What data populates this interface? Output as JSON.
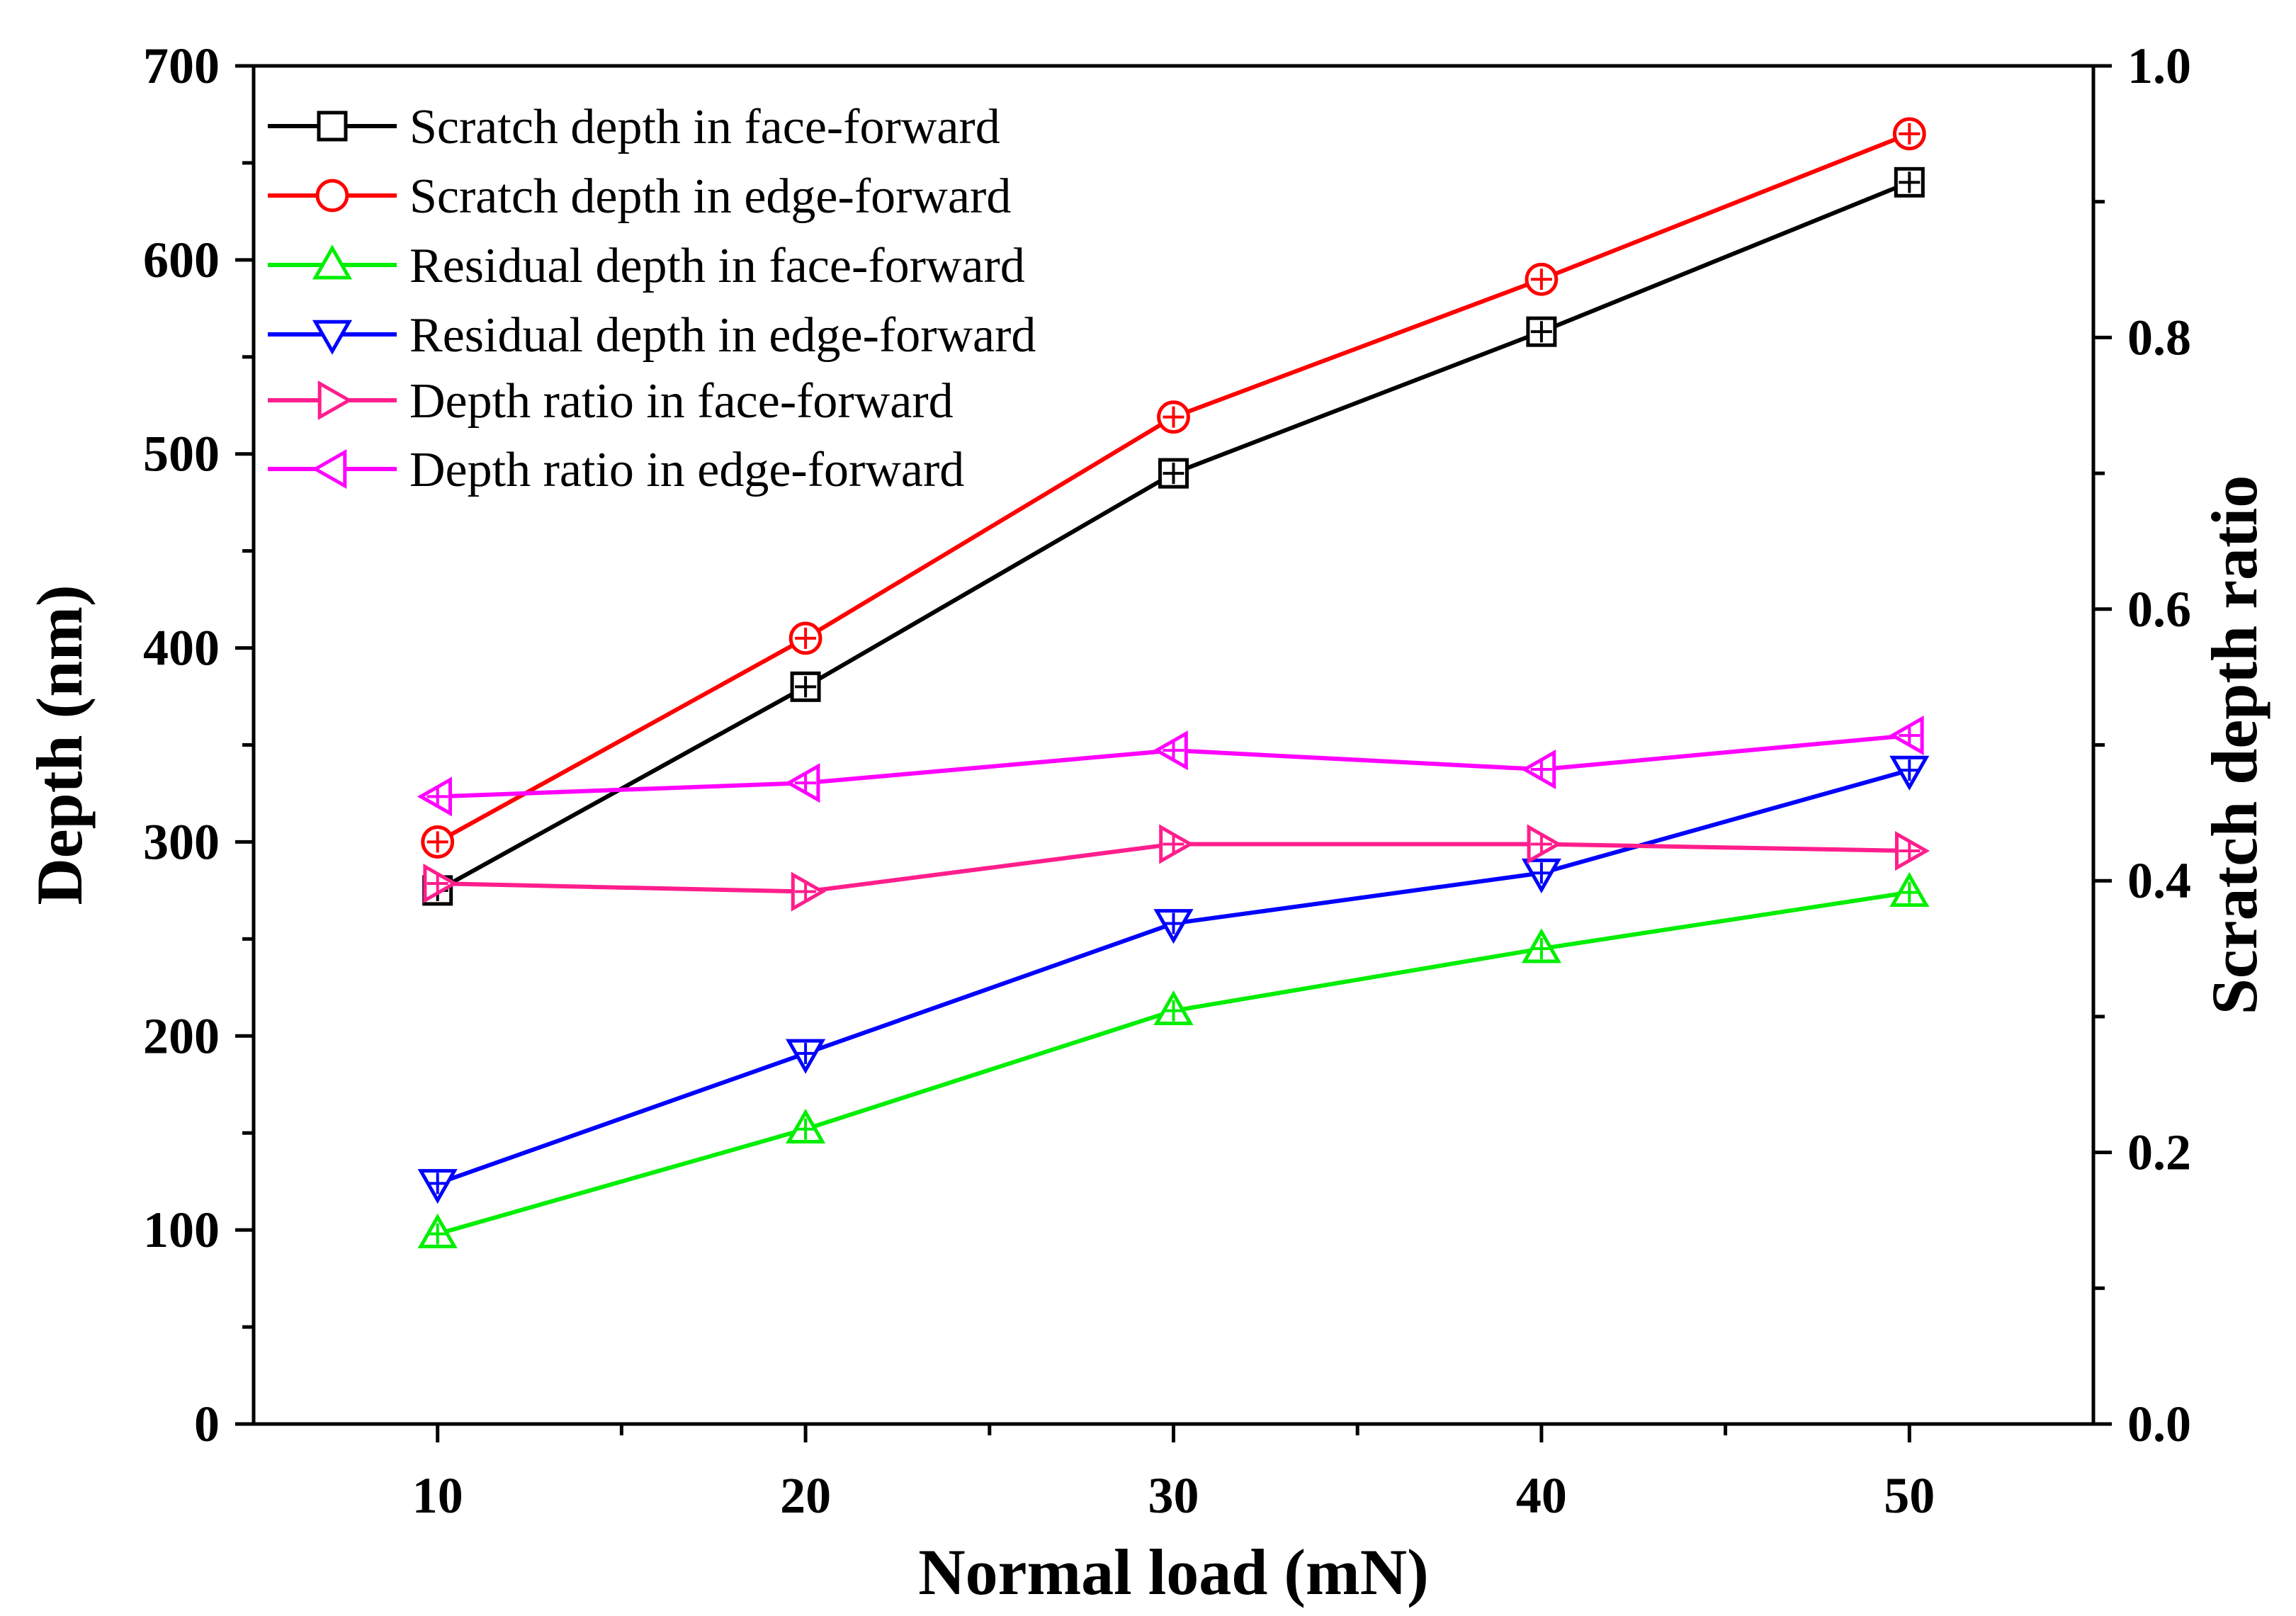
{
  "chart_data": {
    "type": "line",
    "xlabel": "Normal load (mN)",
    "ylabel": "Depth (nm)",
    "y2label": "Scratch depth ratio",
    "x": [
      10,
      20,
      30,
      40,
      50
    ],
    "xlim": [
      5,
      55
    ],
    "ylim": [
      0,
      700
    ],
    "y2lim": [
      0.0,
      1.0
    ],
    "xticks": [
      "10",
      "20",
      "30",
      "40",
      "50"
    ],
    "yticks": [
      "0",
      "100",
      "200",
      "300",
      "400",
      "500",
      "600",
      "700"
    ],
    "y2ticks": [
      "0.0",
      "0.2",
      "0.4",
      "0.6",
      "0.8",
      "1.0"
    ],
    "legend_position": "top-left",
    "series": [
      {
        "name": "Scratch depth in face-forward",
        "axis": "left",
        "marker": "square",
        "color": "#000000",
        "values": [
          275,
          380,
          490,
          563,
          640
        ]
      },
      {
        "name": "Scratch depth in edge-forward",
        "axis": "left",
        "marker": "circle",
        "color": "#ff0000",
        "values": [
          300,
          405,
          519,
          590,
          665
        ]
      },
      {
        "name": "Residual depth in face-forward",
        "axis": "left",
        "marker": "triangle-up",
        "color": "#00ee00",
        "values": [
          98,
          152,
          213,
          245,
          274
        ]
      },
      {
        "name": "Residual depth in edge-forward",
        "axis": "left",
        "marker": "triangle-down",
        "color": "#0000ff",
        "values": [
          124,
          191,
          258,
          284,
          337
        ]
      },
      {
        "name": "Depth ratio in face-forward",
        "axis": "right",
        "marker": "triangle-right",
        "color": "#ff1e8c",
        "values": [
          0.398,
          0.392,
          0.427,
          0.427,
          0.422
        ]
      },
      {
        "name": "Depth ratio in edge-forward",
        "axis": "right",
        "marker": "triangle-left",
        "color": "#ff00ff",
        "values": [
          0.462,
          0.472,
          0.496,
          0.482,
          0.507
        ]
      }
    ]
  }
}
